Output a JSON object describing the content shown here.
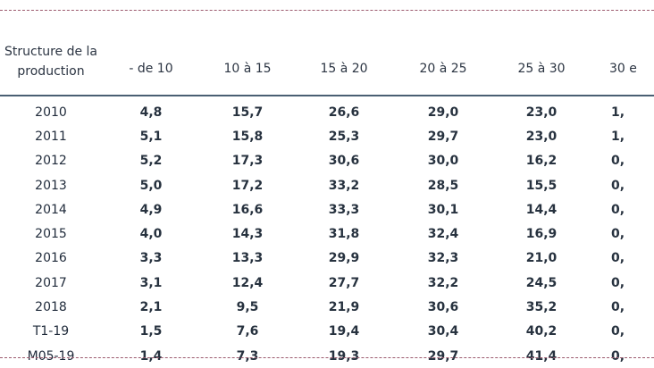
{
  "table": {
    "header_label": [
      "Structure de la",
      "production"
    ],
    "columns": [
      "- de 10",
      "10 à 15",
      "15 à 20",
      "20 à 25",
      "25 à 30",
      "30 e"
    ],
    "rows": [
      {
        "label": "2010",
        "values": [
          "4,8",
          "15,7",
          "26,6",
          "29,0",
          "23,0",
          "1,"
        ]
      },
      {
        "label": "2011",
        "values": [
          "5,1",
          "15,8",
          "25,3",
          "29,7",
          "23,0",
          "1,"
        ]
      },
      {
        "label": "2012",
        "values": [
          "5,2",
          "17,3",
          "30,6",
          "30,0",
          "16,2",
          "0,"
        ]
      },
      {
        "label": "2013",
        "values": [
          "5,0",
          "17,2",
          "33,2",
          "28,5",
          "15,5",
          "0,"
        ]
      },
      {
        "label": "2014",
        "values": [
          "4,9",
          "16,6",
          "33,3",
          "30,1",
          "14,4",
          "0,"
        ]
      },
      {
        "label": "2015",
        "values": [
          "4,0",
          "14,3",
          "31,8",
          "32,4",
          "16,9",
          "0,"
        ]
      },
      {
        "label": "2016",
        "values": [
          "3,3",
          "13,3",
          "29,9",
          "32,3",
          "21,0",
          "0,"
        ]
      },
      {
        "label": "2017",
        "values": [
          "3,1",
          "12,4",
          "27,7",
          "32,2",
          "24,5",
          "0,"
        ]
      },
      {
        "label": "2018",
        "values": [
          "2,1",
          "9,5",
          "21,9",
          "30,6",
          "35,2",
          "0,"
        ]
      },
      {
        "label": "T1-19",
        "values": [
          "1,5",
          "7,6",
          "19,4",
          "30,4",
          "40,2",
          "0,"
        ]
      },
      {
        "label": "M05-19",
        "values": [
          "1,4",
          "7,3",
          "19,3",
          "29,7",
          "41,4",
          "0,"
        ]
      }
    ]
  },
  "colors": {
    "frame_dash": "#9c5a6e",
    "header_rule": "#4a5f73",
    "text": "#27323f"
  }
}
